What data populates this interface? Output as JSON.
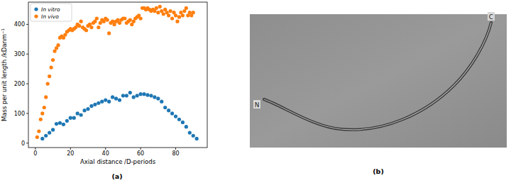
{
  "chart_data": {
    "type": "scatter",
    "x_label": "Axial distance /D-periods",
    "y_label": "Mass per unit length /kDanm⁻¹",
    "xlim": [
      -4,
      98
    ],
    "xticks": [
      0,
      20,
      40,
      60,
      80
    ],
    "ylim": [
      -15,
      475
    ],
    "yticks": [
      0,
      100,
      200,
      300,
      400
    ],
    "grid": false,
    "legend": "upper-left",
    "marker": "circle",
    "series": [
      {
        "name": "In vitro",
        "color": "#1f77b4",
        "x": [
          4,
          6,
          8,
          10,
          12,
          14,
          16,
          18,
          20,
          22,
          24,
          26,
          28,
          30,
          32,
          34,
          36,
          38,
          40,
          42,
          44,
          46,
          48,
          50,
          52,
          54,
          56,
          58,
          60,
          62,
          64,
          66,
          68,
          70,
          72,
          74,
          76,
          78,
          80,
          82,
          84,
          86,
          88,
          90,
          92
        ],
        "values": [
          15,
          25,
          35,
          45,
          65,
          68,
          63,
          75,
          85,
          85,
          100,
          95,
          110,
          115,
          125,
          130,
          135,
          140,
          145,
          140,
          155,
          150,
          145,
          160,
          160,
          170,
          155,
          160,
          165,
          165,
          162,
          160,
          155,
          150,
          140,
          120,
          110,
          100,
          90,
          80,
          70,
          55,
          35,
          25,
          15
        ]
      },
      {
        "name": "In vivo",
        "color": "#ff7f0e",
        "x": [
          1,
          2,
          3,
          4,
          5,
          6,
          7,
          8,
          9,
          10,
          11,
          12,
          13,
          14,
          15,
          16,
          17,
          18,
          19,
          20,
          21,
          22,
          23,
          24,
          25,
          26,
          27,
          28,
          29,
          30,
          31,
          32,
          33,
          34,
          35,
          36,
          37,
          38,
          39,
          40,
          41,
          42,
          43,
          44,
          45,
          46,
          47,
          48,
          49,
          50,
          51,
          52,
          53,
          54,
          55,
          56,
          57,
          58,
          59,
          60,
          61,
          62,
          63,
          64,
          65,
          66,
          67,
          68,
          69,
          70,
          71,
          72,
          73,
          74,
          75,
          76,
          77,
          78,
          79,
          80,
          81,
          82,
          83,
          84,
          85,
          86,
          87,
          88,
          89,
          90
        ],
        "values": [
          20,
          40,
          80,
          100,
          120,
          155,
          200,
          225,
          255,
          280,
          310,
          320,
          330,
          355,
          360,
          355,
          365,
          375,
          380,
          385,
          380,
          385,
          390,
          400,
          395,
          410,
          390,
          385,
          380,
          395,
          400,
          390,
          405,
          410,
          420,
          390,
          405,
          415,
          410,
          420,
          415,
          370,
          405,
          410,
          400,
          410,
          415,
          405,
          415,
          420,
          420,
          405,
          410,
          415,
          400,
          410,
          420,
          425,
          430,
          420,
          455,
          455,
          450,
          455,
          450,
          445,
          450,
          445,
          455,
          440,
          460,
          445,
          435,
          450,
          440,
          430,
          445,
          420,
          440,
          430,
          410,
          425,
          440,
          430,
          445,
          455,
          430,
          440,
          430,
          440
        ]
      }
    ]
  },
  "panels": {
    "a": "(a)",
    "b": "(b)"
  },
  "micrograph": {
    "n_label": "N",
    "c_label": "C"
  }
}
